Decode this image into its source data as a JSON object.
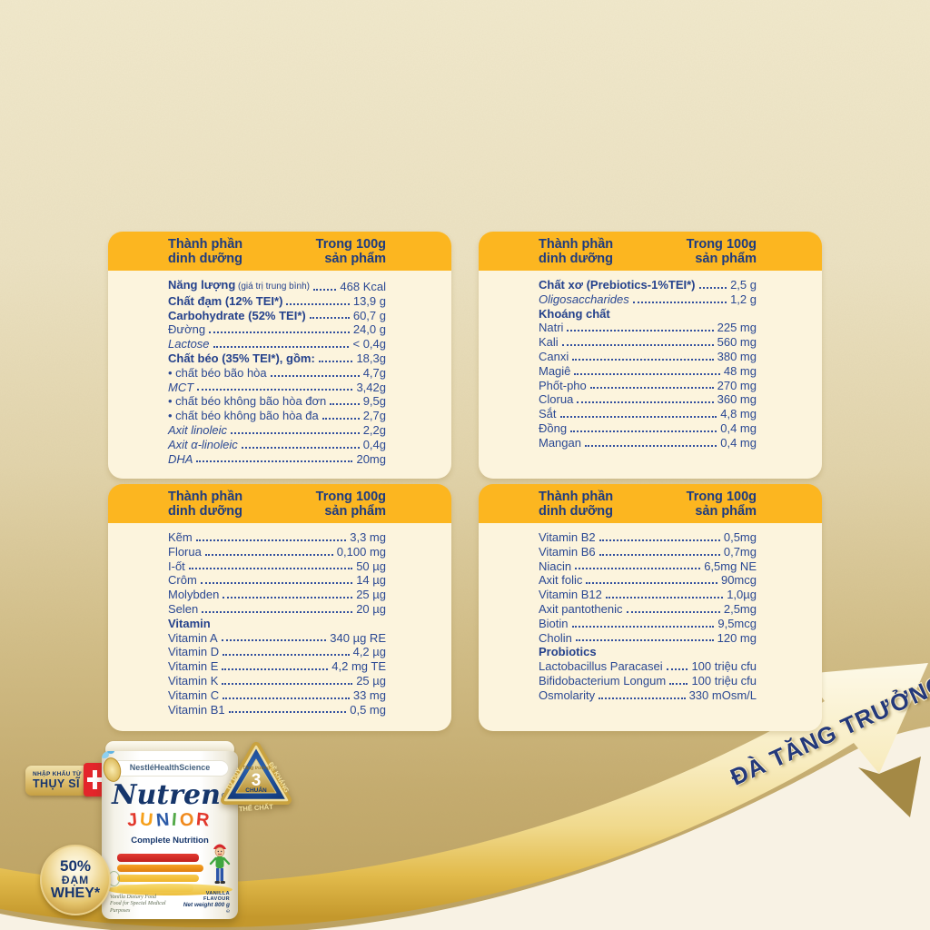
{
  "table_header": {
    "col1": "Thành phần\ndinh dưỡng",
    "col2": "Trong 100g\nsản phẩm"
  },
  "tables": [
    {
      "rows": [
        {
          "label": "Năng lượng",
          "note": " (giá trị trung bình)",
          "value": "468 Kcal",
          "bold": true
        },
        {
          "label": "Chất đạm (12% TEI*)",
          "value": "13,9 g",
          "bold": true
        },
        {
          "label": "Carbohydrate (52% TEI*)",
          "value": "60,7 g",
          "bold": true
        },
        {
          "label": "Đường",
          "value": "24,0 g"
        },
        {
          "label": "Lactose",
          "value": "< 0,4g",
          "italic": true
        },
        {
          "label": "Chất béo (35% TEI*), gồm:",
          "value": "18,3g",
          "bold": true
        },
        {
          "label": "chất béo bão hòa",
          "value": "4,7g",
          "bullet": true
        },
        {
          "label": "MCT",
          "value": "3,42g",
          "italic": true
        },
        {
          "label": "chất béo không bão hòa đơn",
          "value": "9,5g",
          "bullet": true
        },
        {
          "label": "chất béo không bão hòa đa",
          "value": "2,7g",
          "bullet": true
        },
        {
          "label": "Axit linoleic",
          "value": "2,2g",
          "italic": true
        },
        {
          "label": "Axit α-linoleic",
          "value": "0,4g",
          "italic": true
        },
        {
          "label": "DHA",
          "value": "20mg",
          "italic": true
        }
      ]
    },
    {
      "rows": [
        {
          "label": "Chất xơ (Prebiotics-1%TEI*)",
          "value": "2,5 g",
          "bold": true
        },
        {
          "label": "Oligosaccharides",
          "value": "1,2 g",
          "italic": true
        },
        {
          "label": "Khoáng chất",
          "section": true
        },
        {
          "label": "Natri",
          "value": "225 mg"
        },
        {
          "label": "Kali",
          "value": "560 mg"
        },
        {
          "label": "Canxi",
          "value": "380 mg"
        },
        {
          "label": "Magiê",
          "value": "48 mg"
        },
        {
          "label": "Phốt-pho",
          "value": "270 mg"
        },
        {
          "label": "Clorua",
          "value": "360 mg"
        },
        {
          "label": "Sắt",
          "value": "4,8 mg"
        },
        {
          "label": "Đồng",
          "value": "0,4 mg"
        },
        {
          "label": "Mangan",
          "value": "0,4 mg"
        }
      ]
    },
    {
      "rows": [
        {
          "label": "Kẽm",
          "value": "3,3 mg"
        },
        {
          "label": "Florua",
          "value": "0,100 mg"
        },
        {
          "label": "I-ốt",
          "value": "50 µg"
        },
        {
          "label": "Crôm",
          "value": "14 µg"
        },
        {
          "label": "Molybden",
          "value": "25 µg"
        },
        {
          "label": "Selen",
          "value": "20 µg"
        },
        {
          "label": "Vitamin",
          "section": true
        },
        {
          "label": "Vitamin A",
          "value": "340 µg RE"
        },
        {
          "label": "Vitamin D",
          "value": "4,2 µg"
        },
        {
          "label": "Vitamin E",
          "value": "4,2 mg TE"
        },
        {
          "label": "Vitamin K",
          "value": "25 µg"
        },
        {
          "label": "Vitamin C",
          "value": "33 mg"
        },
        {
          "label": "Vitamin B1",
          "value": "0,5 mg"
        }
      ]
    },
    {
      "rows": [
        {
          "label": "Vitamin B2",
          "value": "0,5mg"
        },
        {
          "label": "Vitamin B6",
          "value": "0,7mg"
        },
        {
          "label": "Niacin",
          "value": "6,5mg NE"
        },
        {
          "label": "Axit folic",
          "value": "90mcg"
        },
        {
          "label": "Vitamin B12",
          "value": "1,0µg"
        },
        {
          "label": "Axit pantothenic",
          "value": "2,5mg"
        },
        {
          "label": "Biotin",
          "value": "9,5mcg"
        },
        {
          "label": "Cholin",
          "value": "120 mg"
        },
        {
          "label": "Probiotics",
          "section": true
        },
        {
          "label": "Lactobacillus Paracasei",
          "value": "100 triệu cfu"
        },
        {
          "label": "Bifidobacterium Longum",
          "value": "100 triệu cfu"
        },
        {
          "label": "Osmolarity",
          "value": "330 mOsm/L"
        }
      ]
    }
  ],
  "ribbon": {
    "text": "ĐÀ TĂNG TRƯỞNG"
  },
  "product": {
    "import_badge": {
      "small": "NHẬP KHẨU TỪ",
      "big": "THỤY SĨ"
    },
    "whey_badge": {
      "line1": "50%",
      "line2": "ĐẠM",
      "line3": "WHEY*"
    },
    "quality_badge": {
      "top_small": "Tăng trưởng",
      "number": "3",
      "label": "CHUẨN",
      "side_left": "TƯ DUY",
      "side_right": "ĐỀ KHÁNG",
      "side_bottom": "THỂ CHẤT"
    },
    "can": {
      "brand": "NestléHealthScience",
      "name": "Nutren",
      "reg": "®",
      "junior_letters": [
        {
          "ch": "J",
          "color": "#E2382C"
        },
        {
          "ch": "U",
          "color": "#F6A01B"
        },
        {
          "ch": "N",
          "color": "#2D5BA8"
        },
        {
          "ch": "I",
          "color": "#53A948"
        },
        {
          "ch": "O",
          "color": "#F08A1E"
        },
        {
          "ch": "R",
          "color": "#E2382C"
        }
      ],
      "tagline": "Complete Nutrition",
      "left_line1": "Vanilla Dietary Food",
      "left_line2": "Food for Special Medical Purposes",
      "right_line1": "VANILLA FLAVOUR",
      "right_line2": "Net weight 800 g ℮"
    }
  },
  "colors": {
    "header_yellow": "#FCB620",
    "card_cream": "#FCF4DD",
    "text_navy": "#2A4893",
    "gold": "#C9A84C",
    "swiss_red": "#E4252B",
    "ribbon_navy": "#24397B"
  },
  "icons": {
    "swiss_cross": "+",
    "growth_arrow": "➚"
  }
}
